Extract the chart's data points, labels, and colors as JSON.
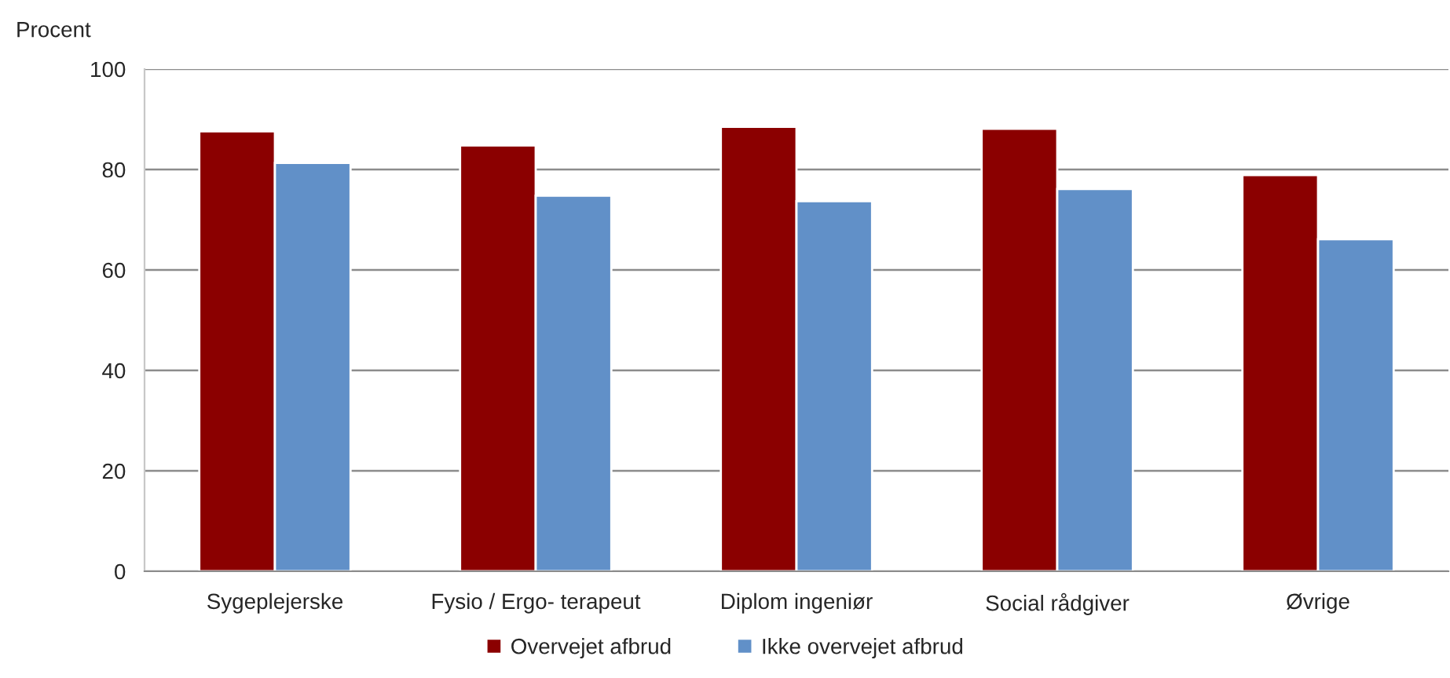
{
  "chart_data": {
    "type": "bar",
    "ylabel": "Procent",
    "categories": [
      "Sygeplejerske",
      "Fysio / Ergo- terapeut",
      "Diplom ingeniør",
      "Social rådgiver",
      "Øvrige"
    ],
    "series": [
      {
        "name": "Overvejet afbrud",
        "color": "#8b0000",
        "values": [
          87.6,
          84.8,
          88.5,
          88.1,
          78.9
        ]
      },
      {
        "name": "Ikke overvejet afbrud",
        "color": "#6190c8",
        "values": [
          81.3,
          74.8,
          73.7,
          76.1,
          66.1
        ]
      }
    ],
    "ylim": [
      0,
      100
    ],
    "yticks": [
      0,
      20,
      40,
      60,
      80,
      100
    ],
    "grid": "y",
    "legend": "bottom"
  }
}
